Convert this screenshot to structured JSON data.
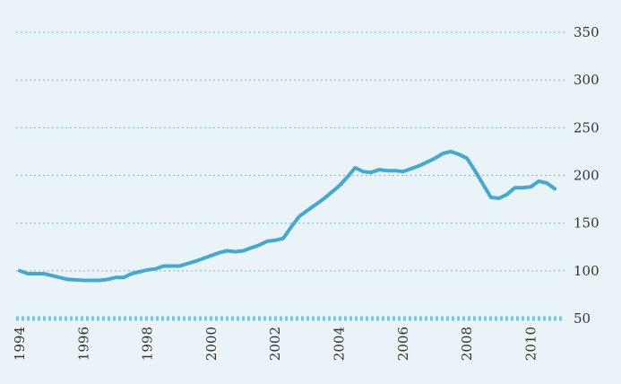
{
  "chart_data": {
    "type": "line",
    "title": "",
    "xlabel": "",
    "ylabel": "",
    "xlim": [
      1994,
      2011
    ],
    "ylim": [
      50,
      350
    ],
    "y_axis_side": "right",
    "x_tick_rotation": "vertical",
    "grid": {
      "y": true,
      "x": false,
      "style": "dotted"
    },
    "y_ticks": [
      50,
      100,
      150,
      200,
      250,
      300,
      350
    ],
    "x_ticks": [
      1994,
      1996,
      1998,
      2000,
      2002,
      2004,
      2006,
      2008,
      2010
    ],
    "y_tick_labels": [
      "50",
      "100",
      "150",
      "200",
      "250",
      "300",
      "350"
    ],
    "x_tick_labels": [
      "1994",
      "1996",
      "1998",
      "2000",
      "2002",
      "2004",
      "2006",
      "2008",
      "2010"
    ],
    "colors": {
      "line": "#41a9d2",
      "grid": "#7fc3e2",
      "background": "#eaf3f8"
    },
    "series": [
      {
        "x": [
          1994.0,
          1994.25,
          1994.5,
          1994.75,
          1995.0,
          1995.5,
          1996.0,
          1996.5,
          1996.75,
          1997.0,
          1997.25,
          1997.5,
          1998.0,
          1998.25,
          1998.5,
          1998.75,
          1999.0,
          1999.5,
          2000.0,
          2000.25,
          2000.5,
          2000.75,
          2001.0,
          2001.25,
          2001.5,
          2001.75,
          2002.0,
          2002.25,
          2002.5,
          2002.75,
          2003.0,
          2003.5,
          2004.0,
          2004.25,
          2004.5,
          2004.75,
          2005.0,
          2005.25,
          2005.5,
          2005.75,
          2006.0,
          2006.5,
          2007.0,
          2007.25,
          2007.5,
          2007.75,
          2008.0,
          2008.25,
          2008.5,
          2008.75,
          2009.0,
          2009.25,
          2009.5,
          2009.75,
          2010.0,
          2010.25,
          2010.5,
          2010.75
        ],
        "y": [
          100,
          97,
          97,
          97,
          95,
          91,
          90,
          90,
          91,
          93,
          93,
          97,
          101,
          102,
          105,
          105,
          105,
          110,
          116,
          119,
          121,
          120,
          121,
          124,
          127,
          131,
          132,
          134,
          146,
          157,
          163,
          175,
          189,
          198,
          208,
          204,
          203,
          206,
          205,
          205,
          204,
          210,
          218,
          223,
          225,
          222,
          218,
          205,
          191,
          177,
          176,
          180,
          187,
          187,
          188,
          194,
          192,
          186
        ]
      }
    ]
  }
}
